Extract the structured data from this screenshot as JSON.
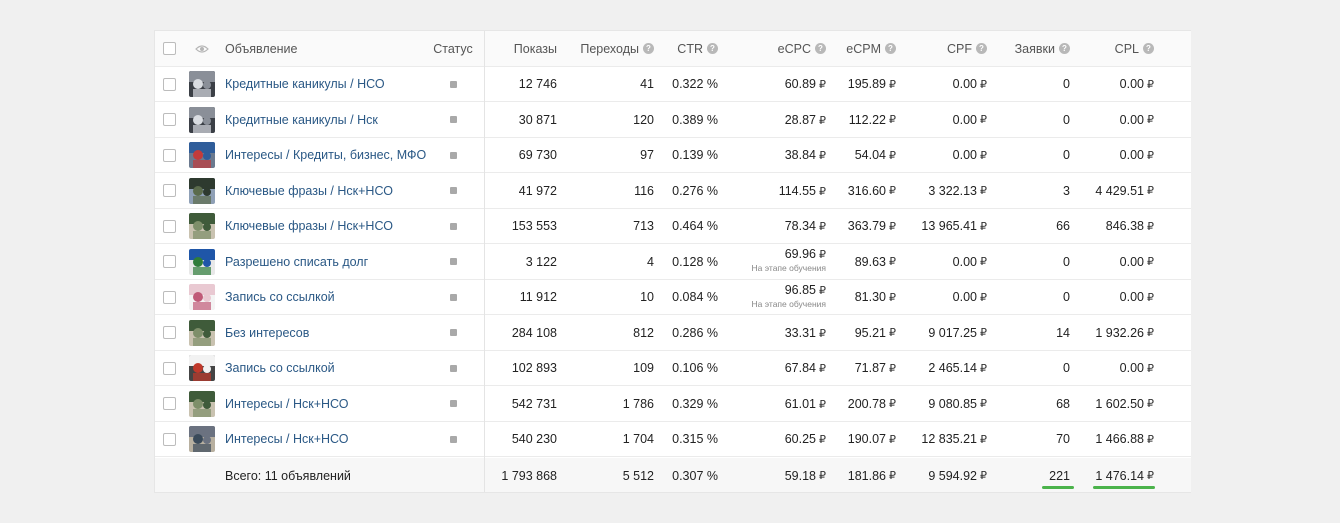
{
  "header": {
    "ad_label": "Объявление",
    "status_label": "Статус",
    "impressions_label": "Показы",
    "clicks_label": "Переходы",
    "ctr_label": "CTR",
    "ecpc_label": "eCPC",
    "ecpm_label": "eCPM",
    "cpf_label": "CPF",
    "leads_label": "Заявки",
    "cpl_label": "CPL",
    "help_glyph": "?"
  },
  "currency": "₽",
  "rows": [
    {
      "name": "Кредитные каникулы / НСО",
      "impressions": "12 746",
      "clicks": "41",
      "ctr": "0.322 %",
      "ecpc": "60.89",
      "ecpc_note": "",
      "ecpm": "195.89",
      "cpf": "0.00",
      "leads": "0",
      "cpl": "0.00",
      "thumb": "photo-office"
    },
    {
      "name": "Кредитные каникулы / Нск",
      "impressions": "30 871",
      "clicks": "120",
      "ctr": "0.389 %",
      "ecpc": "28.87",
      "ecpc_note": "",
      "ecpm": "112.22",
      "cpf": "0.00",
      "leads": "0",
      "cpl": "0.00",
      "thumb": "photo-office"
    },
    {
      "name": "Интересы / Кредиты, бизнес, МФО",
      "impressions": "69 730",
      "clicks": "97",
      "ctr": "0.139 %",
      "ecpc": "38.84",
      "ecpc_note": "",
      "ecpm": "54.04",
      "cpf": "0.00",
      "leads": "0",
      "cpl": "0.00",
      "thumb": "photo-people-blue"
    },
    {
      "name": "Ключевые фразы / Нск+НСО",
      "impressions": "41 972",
      "clicks": "116",
      "ctr": "0.276 %",
      "ecpc": "114.55",
      "ecpc_note": "",
      "ecpm": "316.60",
      "cpf": "3 322.13",
      "leads": "3",
      "cpl": "4 429.51",
      "thumb": "photo-people-dark"
    },
    {
      "name": "Ключевые фразы / Нск+НСО",
      "impressions": "153 553",
      "clicks": "713",
      "ctr": "0.464 %",
      "ecpc": "78.34",
      "ecpc_note": "",
      "ecpm": "363.79",
      "cpf": "13 965.41",
      "leads": "66",
      "cpl": "846.38",
      "thumb": "photo-people-green"
    },
    {
      "name": "Разрешено списать долг",
      "impressions": "3 122",
      "clicks": "4",
      "ctr": "0.128 %",
      "ecpc": "69.96",
      "ecpc_note": "На этапе обучения",
      "ecpm": "89.63",
      "cpf": "0.00",
      "leads": "0",
      "cpl": "0.00",
      "thumb": "photo-banner-blue"
    },
    {
      "name": "Запись со ссылкой",
      "impressions": "11 912",
      "clicks": "10",
      "ctr": "0.084 %",
      "ecpc": "96.85",
      "ecpc_note": "На этапе обучения",
      "ecpm": "81.30",
      "cpf": "0.00",
      "leads": "0",
      "cpl": "0.00",
      "thumb": "photo-pink"
    },
    {
      "name": "Без интересов",
      "impressions": "284 108",
      "clicks": "812",
      "ctr": "0.286 %",
      "ecpc": "33.31",
      "ecpc_note": "",
      "ecpm": "95.21",
      "cpf": "9 017.25",
      "leads": "14",
      "cpl": "1 932.26",
      "thumb": "photo-people-green"
    },
    {
      "name": "Запись со ссылкой",
      "impressions": "102 893",
      "clicks": "109",
      "ctr": "0.106 %",
      "ecpc": "67.84",
      "ecpc_note": "",
      "ecpm": "71.87",
      "cpf": "2 465.14",
      "leads": "0",
      "cpl": "0.00",
      "thumb": "photo-red-white"
    },
    {
      "name": "Интересы / Нск+НСО",
      "impressions": "542 731",
      "clicks": "1 786",
      "ctr": "0.329 %",
      "ecpc": "61.01",
      "ecpc_note": "",
      "ecpm": "200.78",
      "cpf": "9 080.85",
      "leads": "68",
      "cpl": "1 602.50",
      "thumb": "photo-people-green"
    },
    {
      "name": "Интересы / Нск+НСО",
      "impressions": "540 230",
      "clicks": "1 704",
      "ctr": "0.315 %",
      "ecpc": "60.25",
      "ecpc_note": "",
      "ecpm": "190.07",
      "cpf": "12 835.21",
      "leads": "70",
      "cpl": "1 466.88",
      "thumb": "photo-people-grey"
    }
  ],
  "total": {
    "label": "Всего: 11 объявлений",
    "impressions": "1 793 868",
    "clicks": "5 512",
    "ctr": "0.307 %",
    "ecpc": "59.18",
    "ecpm": "181.86",
    "cpf": "9 594.92",
    "leads": "221",
    "cpl": "1 476.14"
  },
  "colors": {
    "link": "#2a5885",
    "highlight": "#4bb34b"
  }
}
